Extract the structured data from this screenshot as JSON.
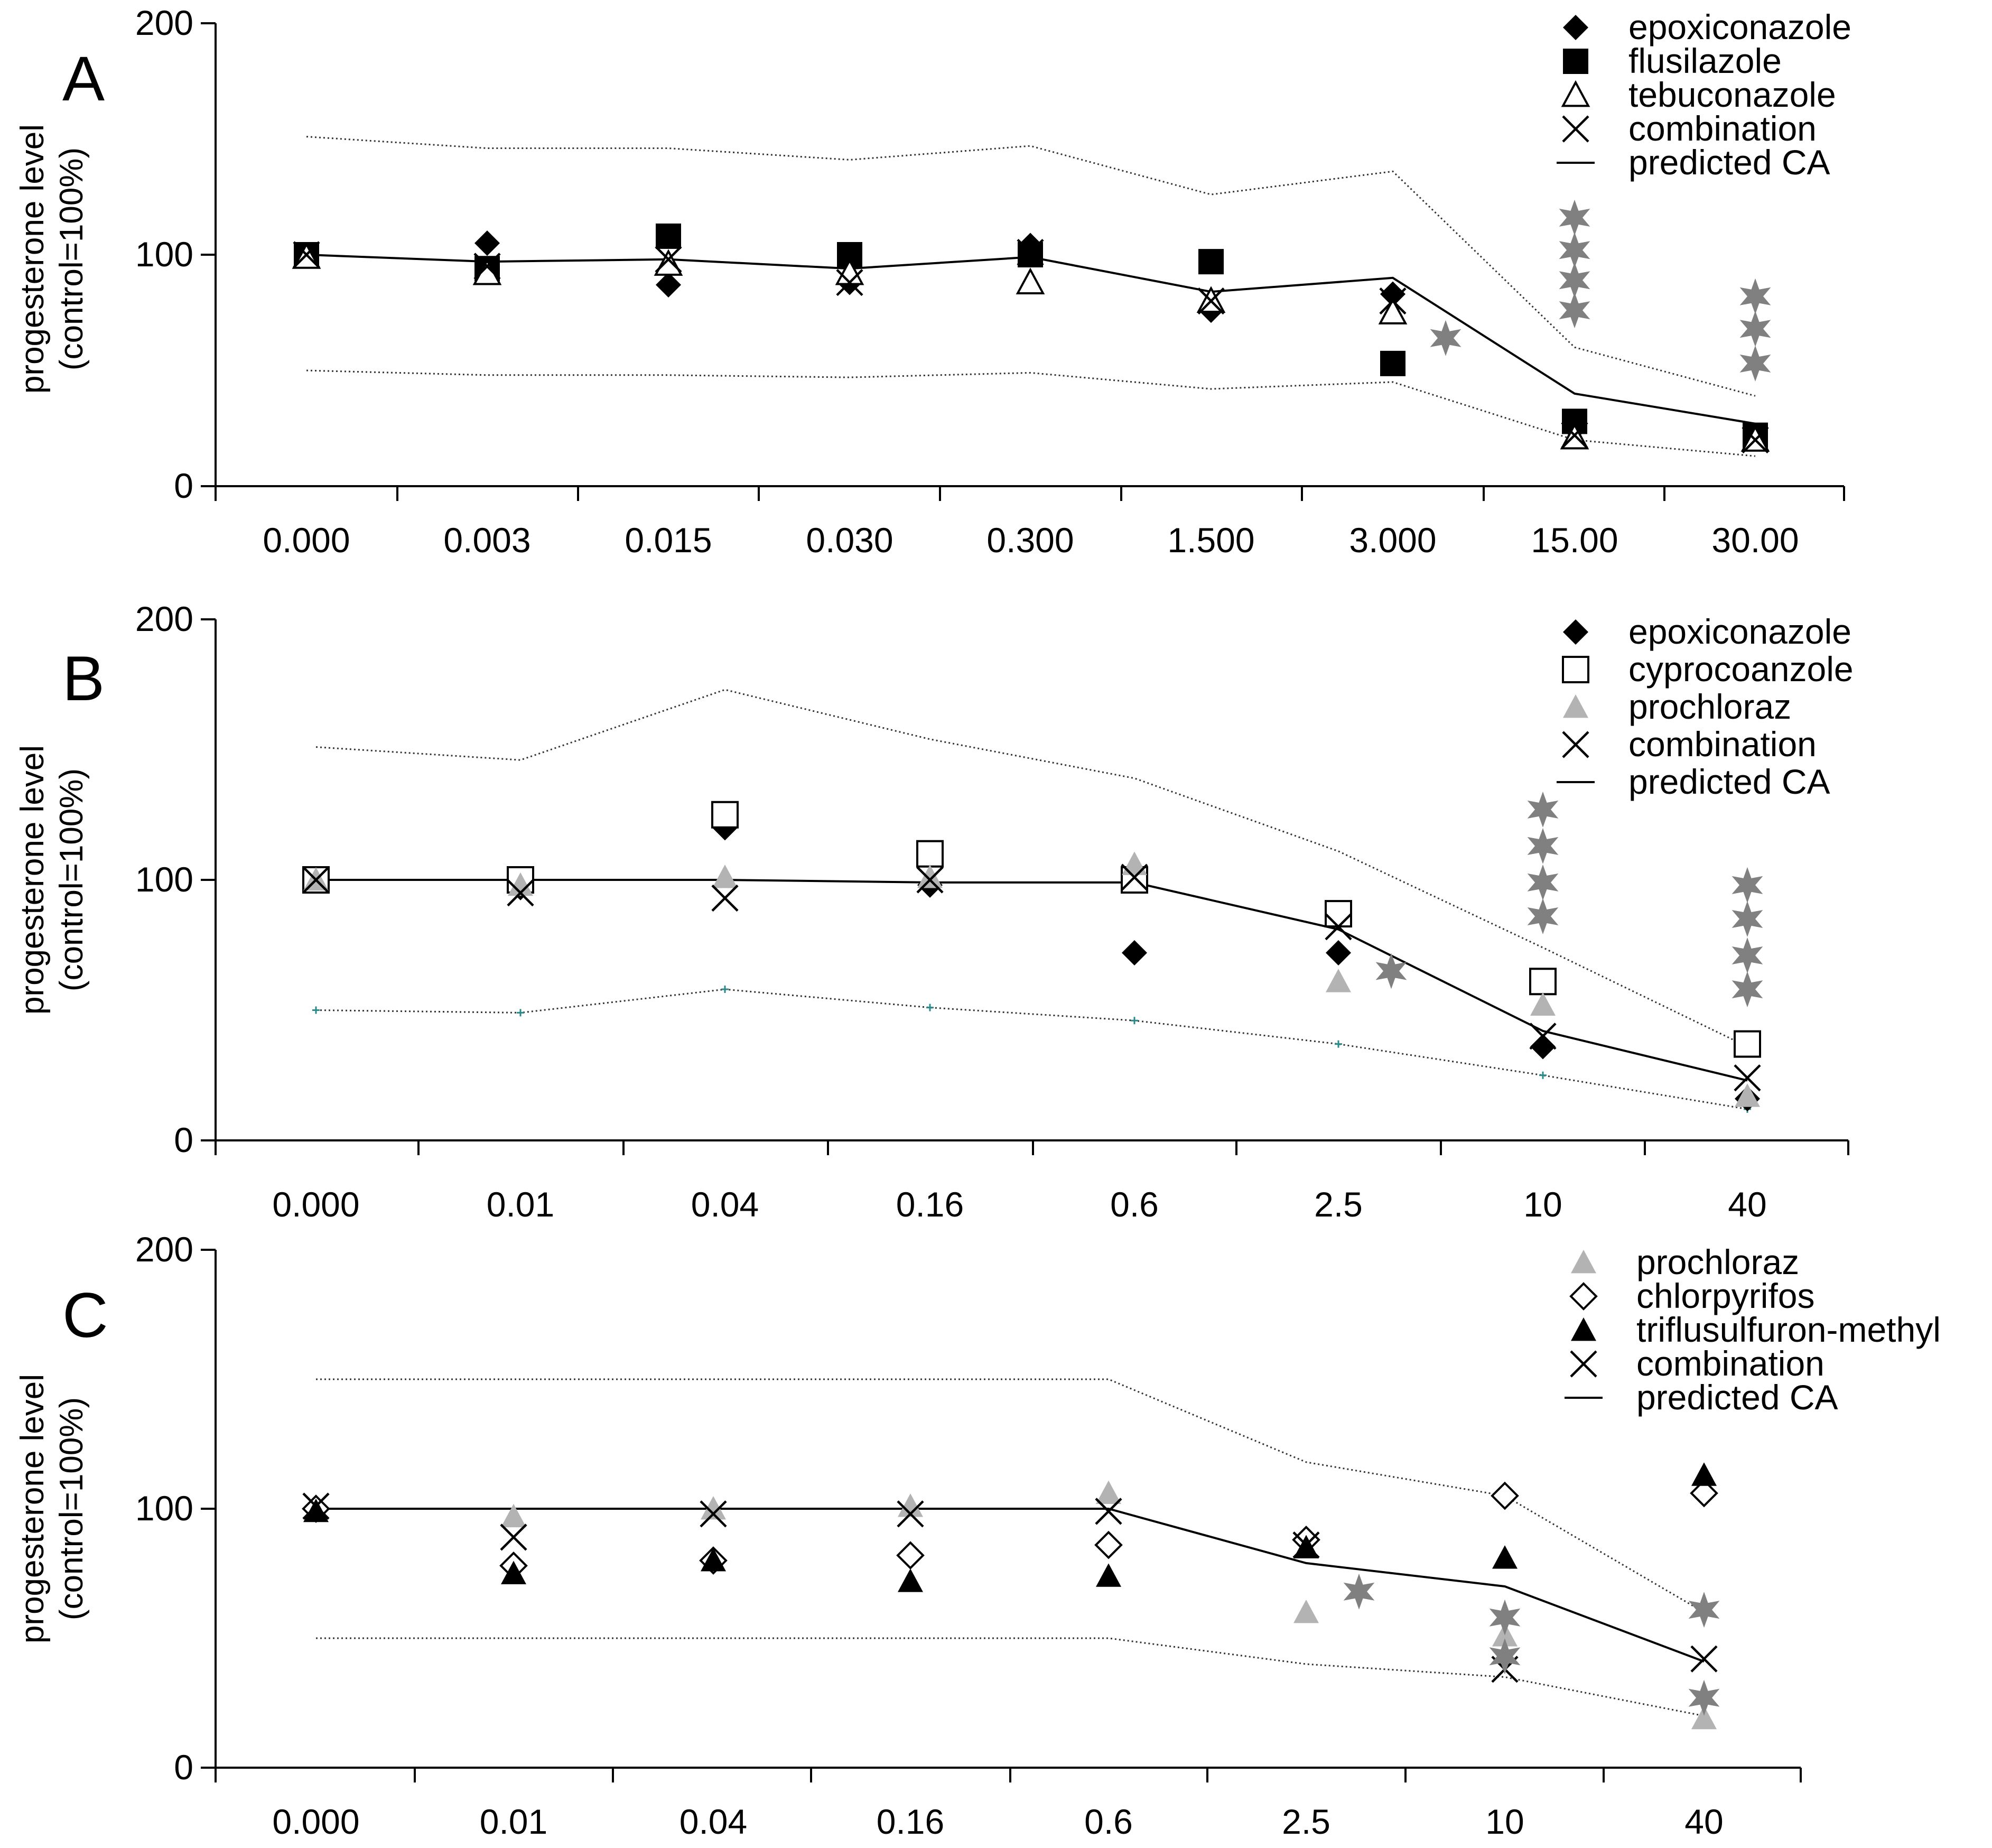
{
  "colors": {
    "axis": "#000000",
    "gray_marker": "#b3b3b3",
    "star": "#808080",
    "teal_tick": "#2a8a8a",
    "dotted": "#333333"
  },
  "chart_data": [
    {
      "id": "A",
      "type": "scatter",
      "panel_label": "A",
      "ylabel_line1": "progesterone level",
      "ylabel_line2": "(control=100%)",
      "ylim": [
        0,
        200
      ],
      "yticks": [
        "200",
        "100",
        "0"
      ],
      "categories": [
        "0.000",
        "0.003",
        "0.015",
        "0.030",
        "0.300",
        "1.500",
        "3.000",
        "15.00",
        "30.00"
      ],
      "predicted_ca": [
        100,
        97,
        98,
        94,
        99,
        84,
        90,
        40,
        27
      ],
      "upper_bound": [
        151,
        146,
        146,
        141,
        147,
        126,
        136,
        60,
        39
      ],
      "lower_bound": [
        50,
        48,
        48,
        47,
        49,
        42,
        45,
        20,
        13
      ],
      "series": [
        {
          "name": "epoxiconazole",
          "marker": "diamond-filled",
          "values": [
            100,
            105,
            87,
            88,
            104,
            76,
            83,
            25,
            21
          ]
        },
        {
          "name": "flusilazole",
          "marker": "square-filled",
          "values": [
            100,
            94,
            108,
            100,
            100,
            97,
            53,
            28,
            22
          ]
        },
        {
          "name": "tebuconazole",
          "marker": "triangle-open",
          "values": [
            99,
            92,
            96,
            92,
            88,
            80,
            75,
            21,
            20
          ]
        },
        {
          "name": "combination",
          "marker": "x",
          "values": [
            100,
            95,
            98,
            88,
            101,
            80,
            80,
            22,
            20
          ]
        }
      ],
      "legend_line": "predicted CA",
      "stars": [
        {
          "x": 6,
          "values": [
            64
          ]
        },
        {
          "x": 7,
          "values": [
            116,
            102,
            89,
            76
          ]
        },
        {
          "x": 8,
          "values": [
            82,
            68,
            53
          ]
        }
      ]
    },
    {
      "id": "B",
      "type": "scatter",
      "panel_label": "B",
      "ylabel_line1": "progesterone level",
      "ylabel_line2": "(control=100%)",
      "ylim": [
        0,
        200
      ],
      "yticks": [
        "200",
        "100",
        "0"
      ],
      "categories": [
        "0.000",
        "0.01",
        "0.04",
        "0.16",
        "0.6",
        "2.5",
        "10",
        "40"
      ],
      "predicted_ca": [
        100,
        100,
        100,
        99,
        99,
        81,
        42,
        23
      ],
      "upper_bound": [
        151,
        146,
        173,
        154,
        139,
        111,
        74,
        36
      ],
      "lower_bound": [
        50,
        49,
        58,
        51,
        46,
        37,
        25,
        12
      ],
      "series": [
        {
          "name": "epoxiconazole",
          "marker": "diamond-filled",
          "values": [
            100,
            97,
            120,
            98,
            72,
            72,
            36,
            16
          ]
        },
        {
          "name": "cyprocoanzole",
          "marker": "square-open",
          "values": [
            100,
            100,
            125,
            110,
            100,
            87,
            61,
            37
          ]
        },
        {
          "name": "prochloraz",
          "marker": "triangle-gray",
          "values": [
            100,
            98,
            101,
            101,
            106,
            61,
            52,
            17
          ]
        },
        {
          "name": "combination",
          "marker": "x",
          "values": [
            100,
            95,
            93,
            100,
            101,
            82,
            40,
            24
          ]
        }
      ],
      "legend_line": "predicted CA",
      "stars": [
        {
          "x": 5,
          "values": [
            65
          ]
        },
        {
          "x": 6,
          "values": [
            127,
            113,
            99,
            86
          ]
        },
        {
          "x": 7,
          "values": [
            98,
            85,
            71,
            58
          ]
        }
      ]
    },
    {
      "id": "C",
      "type": "scatter",
      "panel_label": "C",
      "ylabel_line1": "progesterone level",
      "ylabel_line2": "(control=100%)",
      "ylim": [
        0,
        200
      ],
      "yticks": [
        "200",
        "100",
        "0"
      ],
      "categories": [
        "0.000",
        "0.01",
        "0.04",
        "0.16",
        "0.6",
        "2.5",
        "10",
        "40"
      ],
      "predicted_ca": [
        100,
        100,
        100,
        100,
        100,
        79,
        70,
        41
      ],
      "upper_bound": [
        150,
        150,
        150,
        150,
        150,
        118,
        105,
        60
      ],
      "lower_bound": [
        50,
        50,
        50,
        50,
        50,
        40,
        35,
        20
      ],
      "series": [
        {
          "name": "prochloraz",
          "marker": "triangle-gray",
          "values": [
            100,
            97,
            100,
            101,
            106,
            60,
            51,
            19
          ]
        },
        {
          "name": "chlorpyrifos",
          "marker": "diamond-open",
          "values": [
            100,
            78,
            80,
            82,
            86,
            88,
            105,
            106
          ]
        },
        {
          "name": "triflusulfuron-methyl",
          "marker": "triangle-filled",
          "values": [
            99,
            75,
            80,
            72,
            74,
            85,
            81,
            113
          ]
        },
        {
          "name": "combination",
          "marker": "x",
          "values": [
            101,
            89,
            98,
            98,
            99,
            86,
            38,
            42
          ]
        }
      ],
      "legend_line": "predicted CA",
      "stars": [
        {
          "x": 5,
          "values": [
            68
          ]
        },
        {
          "x": 6,
          "values": [
            58,
            43
          ]
        },
        {
          "x": 7,
          "values": [
            61,
            27
          ]
        }
      ]
    }
  ]
}
